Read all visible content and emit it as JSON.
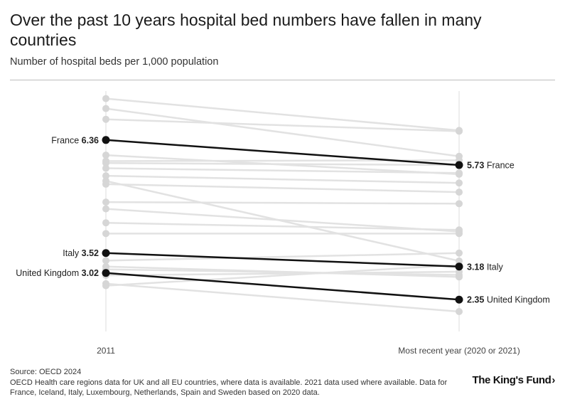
{
  "header": {
    "title": "Over the past 10 years hospital bed numbers have fallen in many countries",
    "subtitle": "Number of hospital beds per 1,000 population"
  },
  "footer": {
    "source": "Source: OECD 2024",
    "note": "OECD Health care regions data for UK and all EU countries, where data is available. 2021 data used where available. Data for France, Iceland, Italy, Luxembourg, Netherlands, Spain and Sweden based on 2020 data.",
    "logo": "The King's Fund",
    "logo_mark": "›"
  },
  "chart_data": {
    "type": "slope",
    "title": "Over the past 10 years hospital bed numbers have fallen in many countries",
    "subtitle": "Number of hospital beds per 1,000 population",
    "x_categories": [
      "2011",
      "Most recent year (2020 or 2021)"
    ],
    "ylim": [
      1.55,
      7.5
    ],
    "colors": {
      "highlight": "#111111",
      "background": "#d6d6d6"
    },
    "highlighted_series": [
      {
        "name": "France",
        "values": [
          6.36,
          5.73
        ],
        "label_start": "6.36",
        "label_end": "5.73"
      },
      {
        "name": "Italy",
        "values": [
          3.52,
          3.18
        ],
        "label_start": "3.52",
        "label_end": "3.18"
      },
      {
        "name": "United Kingdom",
        "values": [
          3.02,
          2.35
        ],
        "label_start": "3.02",
        "label_end": "2.35"
      }
    ],
    "background_series": [
      [
        7.4,
        6.6
      ],
      [
        7.15,
        5.95
      ],
      [
        6.88,
        6.58
      ],
      [
        5.98,
        5.5
      ],
      [
        5.83,
        5.85
      ],
      [
        5.78,
        5.73
      ],
      [
        5.65,
        5.53
      ],
      [
        5.46,
        5.28
      ],
      [
        5.33,
        3.32
      ],
      [
        5.25,
        5.05
      ],
      [
        4.8,
        4.76
      ],
      [
        4.63,
        4.06
      ],
      [
        4.28,
        4.1
      ],
      [
        4.01,
        4.01
      ],
      [
        3.33,
        3.52
      ],
      [
        3.18,
        2.92
      ],
      [
        3.11,
        2.97
      ],
      [
        2.96,
        3.05
      ],
      [
        2.7,
        3.22
      ],
      [
        2.75,
        2.05
      ]
    ]
  }
}
